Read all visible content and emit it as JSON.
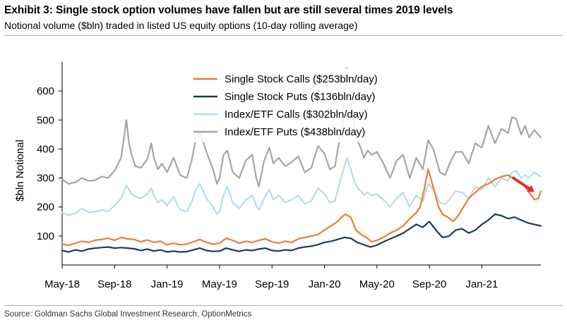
{
  "header": {
    "title": "Exhibit 3: Single stock option volumes have fallen but are still several times 2019 levels",
    "subtitle": "Notional volume ($bln) traded in listed US equity options (10-day rolling average)"
  },
  "footer": {
    "source": "Source: Goldman Sachs Global Investment Research, OptionMetrics"
  },
  "chart_data": {
    "type": "line",
    "title": "Exhibit 3: Single stock option volumes have fallen but are still several times 2019 levels",
    "subtitle": "Notional volume ($bln) traded in listed US equity options (10-day rolling average)",
    "xlabel": "",
    "ylabel": "$bln Notional",
    "ylim": [
      0,
      700
    ],
    "yticks": [
      100,
      200,
      300,
      400,
      500,
      600
    ],
    "xlim": [
      0,
      36.5
    ],
    "x_unit": "months since May-2018",
    "xticks": [
      {
        "x": 0,
        "label": "May-18"
      },
      {
        "x": 4,
        "label": "Sep-18"
      },
      {
        "x": 8,
        "label": "Jan-19"
      },
      {
        "x": 12,
        "label": "May-19"
      },
      {
        "x": 16,
        "label": "Sep-19"
      },
      {
        "x": 20,
        "label": "Jan-20"
      },
      {
        "x": 24,
        "label": "May-20"
      },
      {
        "x": 28,
        "label": "Sep-20"
      },
      {
        "x": 32,
        "label": "Jan-21"
      }
    ],
    "grid": false,
    "legend_position": "top-center",
    "series": [
      {
        "name": "Index/ETF Puts ($438bln/day)",
        "color": "#a6a6a6",
        "x": [
          0,
          0.5,
          1,
          1.5,
          2,
          2.5,
          3,
          3.5,
          4,
          4.5,
          4.9,
          5.1,
          5.3,
          5.6,
          6,
          6.5,
          6.8,
          7,
          7.3,
          7.6,
          8,
          8.5,
          9,
          9.5,
          9.9,
          10.2,
          10.5,
          11,
          11.5,
          11.8,
          12,
          12.3,
          12.6,
          13,
          13.5,
          14,
          14.5,
          14.8,
          15,
          15.4,
          15.8,
          16.1,
          16.5,
          17,
          17.5,
          18,
          18.5,
          19,
          19.5,
          20,
          20.4,
          20.8,
          21.1,
          21.4,
          21.7,
          22,
          22.3,
          22.6,
          22.8,
          23,
          23.3,
          23.6,
          24,
          24.5,
          25,
          25.5,
          26,
          26.5,
          27,
          27.5,
          27.9,
          28.3,
          28.8,
          29.2,
          29.6,
          30,
          30.5,
          31,
          31.5,
          32,
          32.5,
          33,
          33.5,
          34,
          34.3,
          34.6,
          35,
          35.3,
          35.6,
          36,
          36.3,
          36.5
        ],
        "y": [
          295,
          280,
          285,
          300,
          290,
          292,
          305,
          300,
          325,
          370,
          500,
          420,
          380,
          340,
          335,
          365,
          420,
          370,
          330,
          350,
          320,
          370,
          310,
          300,
          365,
          440,
          460,
          390,
          330,
          280,
          300,
          380,
          395,
          320,
          300,
          360,
          380,
          300,
          270,
          360,
          405,
          350,
          370,
          340,
          355,
          375,
          320,
          335,
          410,
          385,
          330,
          340,
          420,
          500,
          680,
          560,
          480,
          420,
          400,
          370,
          395,
          380,
          390,
          350,
          300,
          360,
          380,
          300,
          370,
          330,
          430,
          400,
          320,
          310,
          355,
          390,
          390,
          350,
          420,
          405,
          480,
          420,
          470,
          455,
          510,
          505,
          450,
          480,
          440,
          465,
          450,
          440
        ]
      },
      {
        "name": "Index/ETF Calls ($302bln/day)",
        "color": "#b7dbee",
        "x": [
          0,
          0.5,
          1,
          1.5,
          2,
          2.5,
          3,
          3.5,
          4,
          4.5,
          4.9,
          5.1,
          5.3,
          5.6,
          6,
          6.5,
          6.8,
          7,
          7.3,
          7.6,
          8,
          8.5,
          9,
          9.5,
          9.9,
          10.2,
          10.5,
          11,
          11.5,
          11.8,
          12,
          12.3,
          12.6,
          13,
          13.5,
          14,
          14.5,
          14.8,
          15,
          15.4,
          15.8,
          16.1,
          16.5,
          17,
          17.5,
          18,
          18.5,
          19,
          19.5,
          20,
          20.4,
          20.8,
          21.1,
          21.4,
          21.7,
          22,
          22.3,
          22.6,
          22.8,
          23,
          23.3,
          23.6,
          24,
          24.5,
          25,
          25.5,
          26,
          26.5,
          27,
          27.5,
          27.9,
          28.3,
          28.8,
          29.2,
          29.6,
          30,
          30.5,
          31,
          31.5,
          32,
          32.5,
          33,
          33.5,
          34,
          34.3,
          34.6,
          35,
          35.3,
          35.6,
          36,
          36.3,
          36.5
        ],
        "y": [
          180,
          172,
          178,
          195,
          182,
          184,
          190,
          185,
          205,
          230,
          275,
          260,
          245,
          235,
          230,
          245,
          265,
          240,
          215,
          225,
          205,
          235,
          190,
          185,
          220,
          260,
          280,
          230,
          200,
          175,
          185,
          240,
          270,
          215,
          195,
          225,
          240,
          205,
          190,
          230,
          260,
          225,
          240,
          215,
          225,
          240,
          210,
          220,
          265,
          245,
          215,
          220,
          275,
          320,
          370,
          330,
          285,
          260,
          255,
          240,
          250,
          240,
          245,
          225,
          200,
          230,
          250,
          200,
          240,
          220,
          280,
          260,
          215,
          210,
          230,
          255,
          250,
          230,
          270,
          260,
          300,
          270,
          300,
          290,
          320,
          325,
          300,
          310,
          300,
          320,
          310,
          305
        ]
      },
      {
        "name": "Single Stock Calls ($253bln/day)",
        "color": "#ed7d31",
        "x": [
          0,
          0.5,
          1,
          1.5,
          2,
          2.5,
          3,
          3.5,
          4,
          4.5,
          5,
          5.5,
          6,
          6.5,
          7,
          7.5,
          8,
          8.5,
          9,
          9.5,
          10,
          10.5,
          11,
          11.5,
          12,
          12.5,
          13,
          13.5,
          14,
          14.5,
          15,
          15.5,
          16,
          16.5,
          17,
          17.5,
          18,
          18.5,
          19,
          19.5,
          20,
          20.5,
          21,
          21.3,
          21.6,
          22,
          22.4,
          22.8,
          23.2,
          23.6,
          24,
          24.5,
          25,
          25.5,
          26,
          26.5,
          27,
          27.3,
          27.6,
          27.9,
          28.1,
          28.4,
          28.7,
          29,
          29.4,
          29.8,
          30.2,
          30.6,
          31,
          31.5,
          32,
          32.5,
          33,
          33.5,
          34,
          34.5,
          35,
          35.3,
          35.6,
          36,
          36.3,
          36.5
        ],
        "y": [
          72,
          68,
          75,
          82,
          78,
          85,
          88,
          92,
          85,
          95,
          90,
          88,
          80,
          86,
          78,
          82,
          70,
          75,
          70,
          72,
          80,
          88,
          78,
          72,
          75,
          92,
          85,
          75,
          82,
          78,
          85,
          90,
          80,
          75,
          82,
          78,
          90,
          95,
          100,
          105,
          120,
          135,
          150,
          165,
          175,
          165,
          120,
          105,
          95,
          80,
          85,
          95,
          110,
          120,
          135,
          160,
          180,
          200,
          260,
          330,
          300,
          250,
          200,
          175,
          165,
          150,
          170,
          200,
          230,
          250,
          270,
          280,
          295,
          305,
          310,
          295,
          285,
          270,
          250,
          225,
          230,
          255
        ]
      },
      {
        "name": "Single Stock Puts ($136bln/day)",
        "color": "#1f3864",
        "x": [
          0,
          0.5,
          1,
          1.5,
          2,
          2.5,
          3,
          3.5,
          4,
          4.5,
          5,
          5.5,
          6,
          6.5,
          7,
          7.5,
          8,
          8.5,
          9,
          9.5,
          10,
          10.5,
          11,
          11.5,
          12,
          12.5,
          13,
          13.5,
          14,
          14.5,
          15,
          15.5,
          16,
          16.5,
          17,
          17.5,
          18,
          18.5,
          19,
          19.5,
          20,
          20.5,
          21,
          21.5,
          22,
          22.5,
          23,
          23.5,
          24,
          24.5,
          25,
          25.5,
          26,
          26.5,
          27,
          27.5,
          28,
          28.5,
          29,
          29.5,
          30,
          30.5,
          31,
          31.5,
          32,
          32.5,
          33,
          33.5,
          34,
          34.5,
          35,
          35.5,
          36,
          36.5
        ],
        "y": [
          50,
          45,
          52,
          48,
          55,
          58,
          60,
          62,
          58,
          60,
          58,
          56,
          50,
          55,
          48,
          52,
          45,
          48,
          45,
          46,
          52,
          58,
          50,
          47,
          48,
          58,
          52,
          47,
          52,
          50,
          55,
          58,
          50,
          48,
          52,
          50,
          58,
          62,
          65,
          70,
          78,
          82,
          88,
          95,
          92,
          78,
          70,
          62,
          68,
          80,
          90,
          100,
          110,
          125,
          140,
          130,
          150,
          120,
          95,
          100,
          120,
          125,
          110,
          120,
          140,
          155,
          175,
          170,
          160,
          165,
          155,
          145,
          140,
          135
        ]
      }
    ],
    "annotations": [
      {
        "type": "arrow",
        "color": "#e03030",
        "from": [
          34.4,
          300
        ],
        "to": [
          36.0,
          252
        ],
        "description": "red downward arrow"
      }
    ]
  }
}
